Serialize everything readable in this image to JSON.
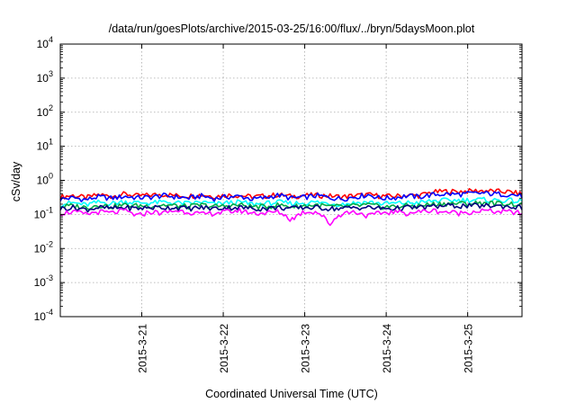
{
  "chart_data": {
    "type": "line",
    "title": "/data/run/goesPlots/archive/2015-03-25/16:00/flux/../bryn/5daysMoon.plot",
    "xlabel": "Coordinated Universal Time (UTC)",
    "ylabel": "cSv/day",
    "yscale": "log",
    "ylim": [
      0.0001,
      10000
    ],
    "x_range_days": [
      "2015-03-20T00:00",
      "2015-03-25T16:00"
    ],
    "x_tick_labels": [
      "2015-3-21",
      "2015-3-22",
      "2015-3-23",
      "2015-3-24",
      "2015-3-25"
    ],
    "y_tick_labels": [
      {
        "base": "10",
        "exp": "4"
      },
      {
        "base": "10",
        "exp": "3"
      },
      {
        "base": "10",
        "exp": "2"
      },
      {
        "base": "10",
        "exp": "1"
      },
      {
        "base": "10",
        "exp": "0"
      },
      {
        "base": "10",
        "exp": "-1"
      },
      {
        "base": "10",
        "exp": "-2"
      },
      {
        "base": "10",
        "exp": "-3"
      },
      {
        "base": "10",
        "exp": "-4"
      }
    ],
    "grid": true,
    "series": [
      {
        "color": "#ff0000",
        "values": [
          0.33,
          0.36,
          0.31,
          0.38,
          0.34,
          0.4,
          0.35,
          0.37,
          0.39,
          0.36,
          0.35,
          0.38,
          0.34,
          0.37,
          0.36,
          0.33,
          0.35,
          0.38,
          0.34,
          0.36,
          0.37,
          0.35,
          0.33,
          0.36,
          0.38,
          0.35,
          0.34,
          0.37,
          0.36,
          0.45,
          0.48,
          0.47,
          0.49,
          0.5,
          0.48,
          0.46,
          0.4
        ]
      },
      {
        "color": "#0000ff",
        "values": [
          0.28,
          0.31,
          0.27,
          0.33,
          0.3,
          0.34,
          0.31,
          0.32,
          0.36,
          0.33,
          0.3,
          0.35,
          0.29,
          0.33,
          0.34,
          0.28,
          0.31,
          0.37,
          0.3,
          0.32,
          0.36,
          0.31,
          0.29,
          0.33,
          0.38,
          0.3,
          0.31,
          0.35,
          0.33,
          0.38,
          0.4,
          0.39,
          0.41,
          0.42,
          0.4,
          0.39,
          0.35
        ]
      },
      {
        "color": "#00ffff",
        "values": [
          0.2,
          0.22,
          0.19,
          0.23,
          0.21,
          0.24,
          0.22,
          0.22,
          0.23,
          0.22,
          0.21,
          0.23,
          0.2,
          0.22,
          0.23,
          0.2,
          0.21,
          0.23,
          0.21,
          0.22,
          0.23,
          0.21,
          0.2,
          0.22,
          0.23,
          0.21,
          0.21,
          0.22,
          0.22,
          0.25,
          0.26,
          0.26,
          0.27,
          0.27,
          0.26,
          0.26,
          0.24
        ]
      },
      {
        "color": "#00aa44",
        "values": [
          0.17,
          0.18,
          0.16,
          0.19,
          0.17,
          0.19,
          0.18,
          0.18,
          0.19,
          0.18,
          0.17,
          0.19,
          0.17,
          0.18,
          0.19,
          0.17,
          0.17,
          0.19,
          0.17,
          0.18,
          0.19,
          0.17,
          0.17,
          0.18,
          0.19,
          0.17,
          0.17,
          0.18,
          0.18,
          0.2,
          0.21,
          0.21,
          0.21,
          0.22,
          0.21,
          0.21,
          0.19
        ]
      },
      {
        "color": "#000080",
        "values": [
          0.15,
          0.16,
          0.14,
          0.16,
          0.15,
          0.16,
          0.15,
          0.16,
          0.16,
          0.16,
          0.15,
          0.16,
          0.15,
          0.16,
          0.16,
          0.15,
          0.15,
          0.16,
          0.15,
          0.16,
          0.16,
          0.15,
          0.15,
          0.16,
          0.16,
          0.15,
          0.15,
          0.16,
          0.16,
          0.17,
          0.18,
          0.18,
          0.18,
          0.18,
          0.18,
          0.17,
          0.16
        ]
      },
      {
        "color": "#ff00ff",
        "values": [
          0.11,
          0.12,
          0.1,
          0.12,
          0.11,
          0.13,
          0.09,
          0.12,
          0.11,
          0.13,
          0.12,
          0.1,
          0.11,
          0.12,
          0.13,
          0.11,
          0.11,
          0.12,
          0.07,
          0.12,
          0.12,
          0.05,
          0.11,
          0.12,
          0.09,
          0.11,
          0.12,
          0.11,
          0.12,
          0.13,
          0.12,
          0.11,
          0.12,
          0.13,
          0.12,
          0.12,
          0.11
        ]
      }
    ]
  }
}
